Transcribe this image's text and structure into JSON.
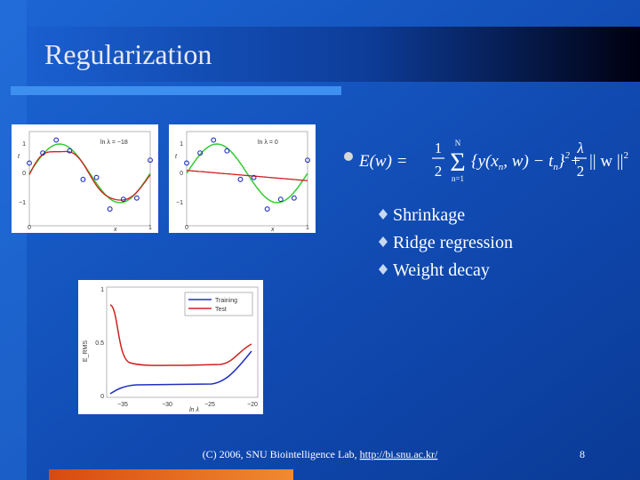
{
  "title": "Regularization",
  "figures": [
    {
      "label": "ln λ = −18",
      "yticks": [
        "1",
        "0",
        "−1"
      ],
      "xticks": [
        "0",
        "1"
      ],
      "ylabel": "t",
      "xlabel": "x"
    },
    {
      "label": "ln λ = 0",
      "yticks": [
        "1",
        "0",
        "−1"
      ],
      "xticks": [
        "0",
        "1"
      ],
      "ylabel": "t",
      "xlabel": "x"
    },
    {
      "legend": [
        "Training",
        "Test"
      ],
      "ylabel": "E_RMS",
      "yticks": [
        "0",
        "0.5",
        "1"
      ],
      "xticks": [
        "−35",
        "−30",
        "−25",
        "−20"
      ],
      "xlabel": "ln λ"
    }
  ],
  "equation": {
    "lhs": "E(w) =",
    "half_num": "1",
    "half_den": "2",
    "sum": "Σ",
    "sum_upper": "N",
    "sum_lower": "n=1",
    "body1": "{y(x",
    "sub1": "n",
    "body2": ", w) − t",
    "sub2": "n",
    "body3": "}",
    "sq1": "2",
    "plus": "+",
    "lam_num": "λ",
    "lam_den": "2",
    "norm": "|| w ||",
    "sq2": "2"
  },
  "bullets": [
    "Shrinkage",
    "Ridge regression",
    "Weight decay"
  ],
  "footer": {
    "text": "(C) 2006, SNU Biointelligence Lab, ",
    "link": "http://bi.snu.ac.kr/",
    "page": "8"
  }
}
